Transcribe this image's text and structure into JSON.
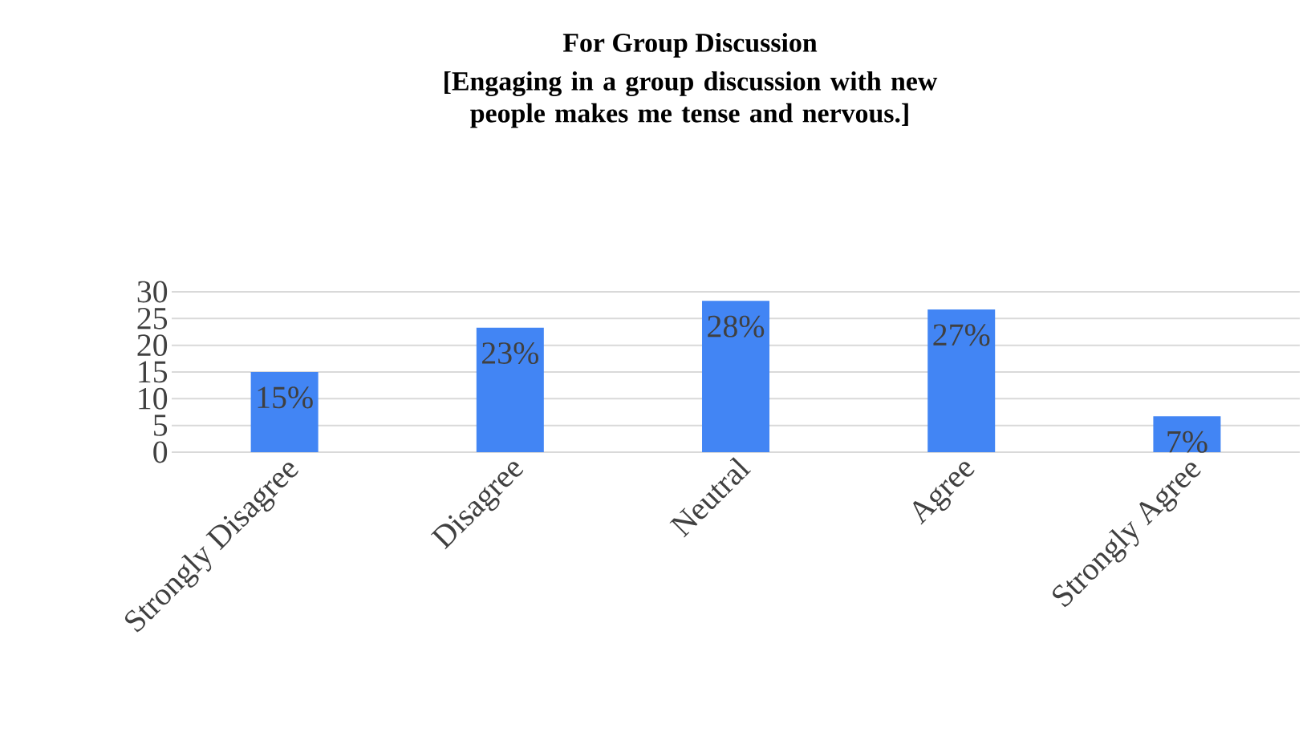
{
  "chart_data": {
    "type": "bar",
    "title": "For Group Discussion",
    "subtitle": "[Engaging in a group discussion with new people makes me tense and nervous.]",
    "categories": [
      "Strongly Disagree",
      "Disagree",
      "Neutral",
      "Agree",
      "Strongly Agree"
    ],
    "values": [
      15,
      23.3,
      28.3,
      26.7,
      6.7
    ],
    "value_labels": [
      "15%",
      "23%",
      "28%",
      "27%",
      "7%"
    ],
    "color": "#4285f4",
    "ylim": [
      0,
      30
    ],
    "yticks": [
      0,
      5,
      10,
      15,
      20,
      25,
      30
    ],
    "grid": "y"
  }
}
